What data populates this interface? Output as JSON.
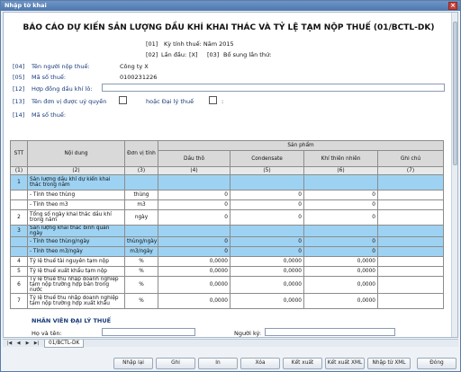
{
  "window": {
    "title": "Nhập tờ khai",
    "close": "×"
  },
  "doc": {
    "title": "BÁO CÁO DỰ KIẾN SẢN LƯỢNG DẦU KHÍ KHAI THÁC VÀ TỶ LỆ TẠM NỘP THUẾ (01/BCTL-DK)",
    "ky_tinh_thue_code": "[01]",
    "ky_tinh_thue_label": "Kỳ tính thuế: Năm 2015",
    "lan_dau_code": "[02]",
    "lan_dau_label": "Lần đầu:",
    "lan_dau_value": "[X]",
    "bo_sung_code": "[03]",
    "bo_sung_label": "Bổ sung lần thứ:",
    "nguoi_nop_code": "[04]",
    "nguoi_nop_label": "Tên người nộp thuế:",
    "nguoi_nop_value": "Công ty X",
    "ma_so_code": "[05]",
    "ma_so_label": "Mã số thuế:",
    "ma_so_value": "0100231226",
    "hop_dong_code": "[12]",
    "hop_dong_label": "Hợp đồng dầu khí lô:",
    "don_vi_code": "[13]",
    "don_vi_label": "Tên đơn vị được uỷ quyền",
    "dai_ly_label": "hoặc Đại lý thuế",
    "dai_ly_colon": ":",
    "ma_so2_code": "[14]",
    "ma_so2_label": "Mã số thuế:"
  },
  "table": {
    "headers": {
      "stt": "STT",
      "noi_dung": "Nội dung",
      "don_vi": "Đơn vị tính",
      "san_pham": "Sản phẩm",
      "dau_tho": "Dầu thô",
      "condensate": "Condensate",
      "khi": "Khí thiên nhiên",
      "ghi_chu": "Ghi chú"
    },
    "index_row": [
      "(1)",
      "(2)",
      "(3)",
      "(4)",
      "(5)",
      "(6)",
      "(7)"
    ],
    "rows": [
      {
        "stt": "1",
        "content": "Sản lượng dầu khí dự kiến khai thác trong năm",
        "unit": "",
        "v1": "",
        "v2": "",
        "v3": "",
        "hl": true
      },
      {
        "stt": "",
        "content": "- Tính theo thùng",
        "unit": "thùng",
        "v1": "0",
        "v2": "0",
        "v3": "0",
        "hl": false
      },
      {
        "stt": "",
        "content": "- Tính theo m3",
        "unit": "m3",
        "v1": "0",
        "v2": "0",
        "v3": "0",
        "hl": false
      },
      {
        "stt": "2",
        "content": "Tổng số ngày khai thác dầu khí trong năm",
        "unit": "ngày",
        "v1": "0",
        "v2": "0",
        "v3": "0",
        "hl": false
      },
      {
        "stt": "3",
        "content": "Sản lượng khai thác bình quân ngày",
        "unit": "",
        "v1": "",
        "v2": "",
        "v3": "",
        "hl": true
      },
      {
        "stt": "",
        "content": "- Tính theo thùng/ngày",
        "unit": "thùng/ngày",
        "v1": "0",
        "v2": "0",
        "v3": "0",
        "hl": true
      },
      {
        "stt": "",
        "content": "- Tính theo m3/ngày",
        "unit": "m3/ngày",
        "v1": "0",
        "v2": "0",
        "v3": "0",
        "hl": true
      },
      {
        "stt": "4",
        "content": "Tỷ lệ thuế tài nguyên tạm nộp",
        "unit": "%",
        "v1": "0,0000",
        "v2": "0,0000",
        "v3": "0,0000",
        "hl": false
      },
      {
        "stt": "5",
        "content": "Tỷ lệ thuế xuất khẩu tạm nộp",
        "unit": "%",
        "v1": "0,0000",
        "v2": "0,0000",
        "v3": "0,0000",
        "hl": false
      },
      {
        "stt": "6",
        "content": "Tỷ lệ thuế thu nhập doanh nghiệp tạm nộp trường hợp bán trong nước",
        "unit": "%",
        "v1": "0,0000",
        "v2": "0,0000",
        "v3": "0,0000",
        "hl": false
      },
      {
        "stt": "7",
        "content": "Tỷ lệ thuế thu nhập doanh nghiệp tạm nộp trường hợp xuất khẩu",
        "unit": "%",
        "v1": "0,0000",
        "v2": "0,0000",
        "v3": "0,0000",
        "hl": false
      }
    ]
  },
  "agent": {
    "section": "NHÂN VIÊN ĐẠI LÝ THUẾ",
    "name_label": "Họ và tên:",
    "signer_label": "Người ký:"
  },
  "sheet_tab": "01/BCTL-DK",
  "buttons": {
    "nhap_lai": "Nhập lại",
    "ghi": "Ghi",
    "in": "In",
    "xoa": "Xóa",
    "ket_xuat": "Kết xuất",
    "ket_xuat_xml": "Kết xuất XML",
    "nhap_tu_xml": "Nhập từ XML",
    "dong": "Đóng"
  },
  "colors": {
    "highlight_row": "#9ed2f2",
    "title_bar": "#4d77ad"
  }
}
